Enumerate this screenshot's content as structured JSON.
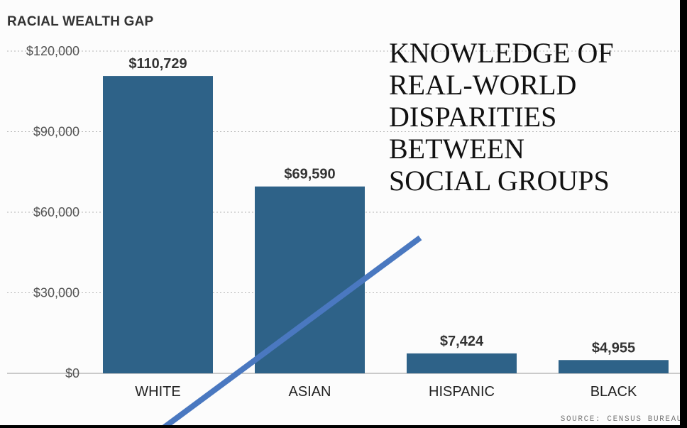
{
  "chart_data": {
    "type": "bar",
    "title": "RACIAL WEALTH GAP",
    "categories": [
      "WHITE",
      "ASIAN",
      "HISPANIC",
      "BLACK"
    ],
    "values": [
      110729,
      69590,
      7424,
      4955
    ],
    "data_labels": [
      "$110,729",
      "$69,590",
      "$7,424",
      "$4,955"
    ],
    "yticks": [
      0,
      30000,
      60000,
      90000,
      120000
    ],
    "ytick_labels": [
      "$0",
      "$30,000",
      "$60,000",
      "$90,000",
      "$120,000"
    ],
    "ylim": [
      0,
      120000
    ],
    "grid": true,
    "bar_color": "#2e6288",
    "source": "SOURCE: CENSUS BUREAU"
  },
  "annotation": {
    "text": "KNOWLEDGE OF\nREAL-WORLD\nDISPARITIES\nBETWEEN\nSOCIAL GROUPS",
    "arrow_color": "#4a78c0"
  }
}
